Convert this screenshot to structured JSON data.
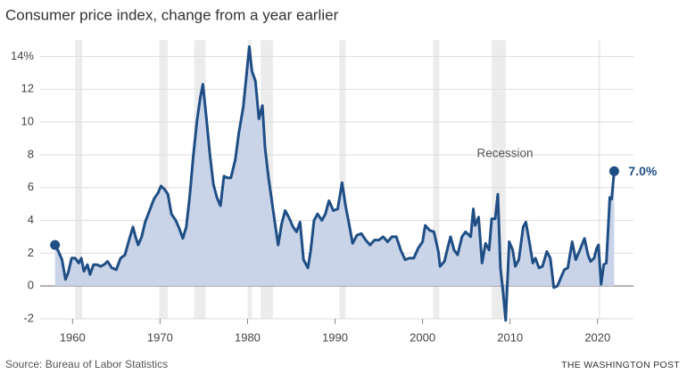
{
  "chart_data": {
    "type": "line",
    "title": "Consumer price index, change from a year earlier",
    "source": "Source: Bureau of Labor Statistics",
    "credit": "THE WASHINGTON POST",
    "recession_label": "Recession",
    "end_label": "7.0%",
    "color": "#1f4e85",
    "fill_color": "#c9d4e8",
    "recession_color": "#ececec",
    "recessions": [
      [
        1960.3,
        1961.1
      ],
      [
        1969.9,
        1970.9
      ],
      [
        1973.9,
        1975.2
      ],
      [
        1980.0,
        1980.5
      ],
      [
        1981.5,
        1982.9
      ],
      [
        1990.5,
        1991.2
      ],
      [
        2001.2,
        2001.9
      ],
      [
        2007.9,
        2009.5
      ],
      [
        2020.1,
        2020.3
      ]
    ],
    "xlim": [
      1956.3,
      2024.1
    ],
    "ylim": [
      -2,
      15
    ],
    "xticks": [
      1960,
      1970,
      1980,
      1990,
      2000,
      2010,
      2020
    ],
    "yticks": [
      -2,
      0,
      2,
      4,
      6,
      8,
      10,
      12,
      {
        "value": 14,
        "label": "14%"
      }
    ],
    "grid": true,
    "x": [
      1958.0,
      1958.4,
      1958.8,
      1959.2,
      1959.5,
      1959.9,
      1960.3,
      1960.7,
      1961.0,
      1961.3,
      1961.7,
      1962.0,
      1962.4,
      1962.8,
      1963.2,
      1963.6,
      1964.0,
      1964.5,
      1965.0,
      1965.5,
      1966.0,
      1966.4,
      1966.9,
      1967.2,
      1967.5,
      1967.9,
      1968.3,
      1968.8,
      1969.3,
      1969.8,
      1970.1,
      1970.5,
      1970.9,
      1971.3,
      1971.8,
      1972.2,
      1972.6,
      1973.0,
      1973.4,
      1973.8,
      1974.2,
      1974.6,
      1974.9,
      1975.3,
      1975.7,
      1976.1,
      1976.5,
      1976.9,
      1977.3,
      1977.7,
      1978.1,
      1978.6,
      1979.0,
      1979.5,
      1979.9,
      1980.2,
      1980.5,
      1980.9,
      1981.3,
      1981.7,
      1982.0,
      1982.4,
      1982.8,
      1983.2,
      1983.5,
      1983.9,
      1984.3,
      1984.7,
      1985.2,
      1985.6,
      1986.0,
      1986.4,
      1986.9,
      1987.2,
      1987.6,
      1988.0,
      1988.5,
      1988.9,
      1989.3,
      1989.8,
      1990.3,
      1990.8,
      1991.2,
      1991.6,
      1992.0,
      1992.5,
      1993.0,
      1993.5,
      1994.0,
      1994.5,
      1995.0,
      1995.5,
      1996.0,
      1996.5,
      1997.0,
      1997.5,
      1998.0,
      1998.5,
      1999.0,
      1999.5,
      2000.0,
      2000.3,
      2000.8,
      2001.3,
      2001.8,
      2002.0,
      2002.5,
      2002.9,
      2003.2,
      2003.6,
      2004.0,
      2004.5,
      2004.9,
      2005.5,
      2005.8,
      2006.0,
      2006.4,
      2006.8,
      2007.2,
      2007.6,
      2007.9,
      2008.3,
      2008.6,
      2008.9,
      2009.2,
      2009.5,
      2009.9,
      2010.3,
      2010.6,
      2011.0,
      2011.5,
      2011.8,
      2012.2,
      2012.6,
      2012.9,
      2013.3,
      2013.7,
      2014.2,
      2014.6,
      2015.0,
      2015.4,
      2015.8,
      2016.2,
      2016.6,
      2017.1,
      2017.5,
      2017.9,
      2018.5,
      2018.9,
      2019.2,
      2019.6,
      2019.9,
      2020.1,
      2020.4,
      2020.7,
      2021.0,
      2021.4,
      2021.6,
      2021.9
    ],
    "values": [
      2.5,
      2.1,
      1.6,
      0.4,
      0.8,
      1.7,
      1.7,
      1.4,
      1.7,
      0.9,
      1.3,
      0.7,
      1.3,
      1.3,
      1.2,
      1.3,
      1.5,
      1.1,
      1.0,
      1.7,
      1.9,
      2.7,
      3.6,
      3.0,
      2.5,
      3.0,
      3.9,
      4.6,
      5.3,
      5.7,
      6.1,
      5.9,
      5.6,
      4.4,
      4.0,
      3.5,
      2.9,
      3.6,
      5.5,
      7.9,
      10.0,
      11.5,
      12.3,
      10.2,
      8.0,
      6.2,
      5.4,
      4.9,
      6.7,
      6.6,
      6.6,
      7.7,
      9.3,
      10.9,
      13.0,
      14.6,
      13.1,
      12.5,
      10.2,
      11.0,
      8.4,
      6.6,
      5.1,
      3.6,
      2.5,
      3.8,
      4.6,
      4.2,
      3.6,
      3.3,
      3.9,
      1.6,
      1.1,
      2.1,
      4.0,
      4.4,
      4.0,
      4.4,
      5.2,
      4.6,
      4.7,
      6.3,
      4.9,
      3.8,
      2.6,
      3.1,
      3.2,
      2.8,
      2.5,
      2.8,
      2.8,
      3.0,
      2.7,
      3.0,
      3.0,
      2.2,
      1.6,
      1.7,
      1.7,
      2.3,
      2.7,
      3.7,
      3.4,
      3.3,
      2.1,
      1.2,
      1.5,
      2.4,
      3.0,
      2.2,
      1.9,
      3.0,
      3.3,
      3.0,
      4.7,
      3.7,
      4.2,
      1.4,
      2.6,
      2.2,
      4.1,
      4.1,
      5.6,
      1.1,
      -0.4,
      -2.1,
      2.7,
      2.2,
      1.2,
      1.6,
      3.6,
      3.9,
      2.7,
      1.4,
      1.7,
      1.1,
      1.2,
      2.1,
      1.7,
      -0.1,
      0.0,
      0.5,
      1.0,
      1.1,
      2.7,
      1.6,
      2.1,
      2.9,
      1.9,
      1.5,
      1.7,
      2.3,
      2.5,
      0.1,
      1.3,
      1.4,
      5.4,
      5.3,
      7.0
    ]
  }
}
